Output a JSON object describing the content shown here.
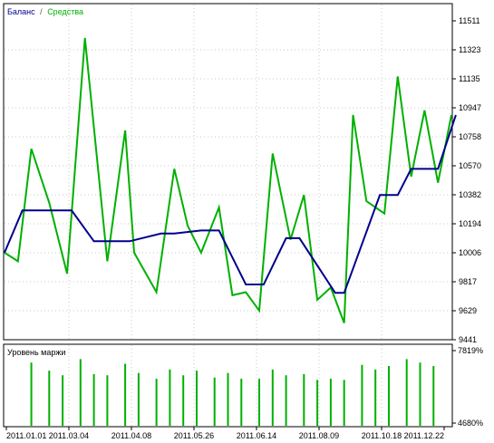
{
  "chart_data": [
    {
      "type": "line",
      "legend": {
        "series": [
          {
            "name": "Баланс",
            "color": "#00008b"
          },
          {
            "name": "Средства",
            "color": "#00b000"
          }
        ],
        "separator": "/",
        "placement": "top-left"
      },
      "y_ticks": [
        "11511",
        "11323",
        "11135",
        "10947",
        "10758",
        "10570",
        "10382",
        "10194",
        "10006",
        "9817",
        "9629",
        "9441"
      ],
      "ylim": [
        9441,
        11511
      ],
      "x_ticks": [
        "2011.01.01",
        "2011.03.04",
        "2011.04.08",
        "2011.05.26",
        "2011.06.14",
        "2011.08.09",
        "2011.10.18",
        "2011.12.22"
      ],
      "series": [
        {
          "name": "Баланс",
          "color": "#00008b",
          "x": [
            0,
            4,
            15,
            20,
            22,
            28,
            35,
            38,
            44,
            48,
            54,
            58,
            63,
            66,
            74,
            76,
            84,
            88,
            91,
            97,
            101
          ],
          "y": [
            10006,
            10280,
            10280,
            10080,
            10080,
            10080,
            10130,
            10130,
            10150,
            10150,
            9800,
            9800,
            10100,
            10100,
            9745,
            9745,
            10380,
            10380,
            10550,
            10550,
            10900
          ]
        },
        {
          "name": "Средства",
          "color": "#00b000",
          "x": [
            0,
            3,
            6,
            10,
            14,
            18,
            23,
            27,
            29,
            34,
            38,
            41,
            44,
            48,
            51,
            54,
            57,
            60,
            64,
            67,
            70,
            73,
            76,
            78,
            81,
            85,
            88,
            91,
            94,
            97,
            100
          ],
          "y": [
            10006,
            9950,
            10680,
            10330,
            9870,
            11400,
            9950,
            10800,
            10006,
            9750,
            10550,
            10180,
            10006,
            10300,
            9730,
            9750,
            9630,
            10650,
            10090,
            10380,
            9700,
            9780,
            9550,
            10900,
            10340,
            10260,
            11150,
            10500,
            10930,
            10460,
            10900
          ]
        }
      ]
    },
    {
      "type": "bar",
      "title": "Уровень маржи",
      "y_ticks": [
        "7819%",
        "4680%"
      ],
      "ylim": [
        4680,
        7819
      ],
      "color": "#00b000",
      "x": [
        6,
        10,
        13,
        17,
        20,
        23,
        27,
        30,
        34,
        37,
        40,
        43,
        47,
        50,
        53,
        57,
        60,
        63,
        67,
        70,
        73,
        76,
        80,
        83,
        86,
        90,
        93,
        96
      ],
      "values": [
        7300,
        6950,
        6750,
        7450,
        6800,
        6750,
        7250,
        6850,
        6600,
        7000,
        6750,
        6950,
        6650,
        6850,
        6600,
        6600,
        7000,
        6750,
        6800,
        6550,
        6600,
        6550,
        7200,
        7000,
        7150,
        7450,
        7300,
        7150
      ]
    }
  ]
}
